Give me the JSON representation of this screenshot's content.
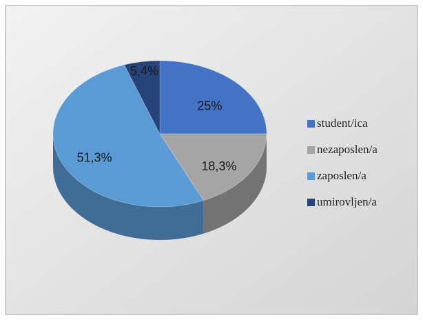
{
  "chart_data": {
    "type": "pie",
    "categories": [
      "student/ica",
      "nezaposlen/a",
      "zaposlen/a",
      "umirovljen/a"
    ],
    "values": [
      25,
      18.3,
      51.3,
      5.4
    ],
    "value_labels": [
      "25%",
      "18,3%",
      "51,3%",
      "5,4%"
    ],
    "colors": [
      "#4472c4",
      "#a5a5a5",
      "#5b9bd5",
      "#264478"
    ],
    "legend": "right"
  }
}
